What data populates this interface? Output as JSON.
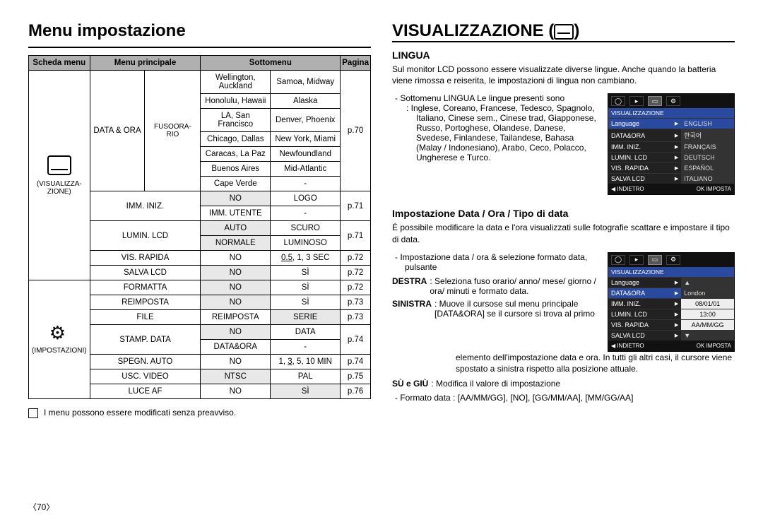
{
  "left": {
    "heading": "Menu impostazione",
    "headers": {
      "c1": "Scheda menu",
      "c2": "Menu principale",
      "c3": "Sottomenu",
      "c4": "",
      "c5": "Pagina"
    },
    "schede": [
      {
        "icon": "display",
        "label_lines": [
          "(VISUALIZZA-",
          "ZIONE)"
        ],
        "groups": [
          {
            "principale": "DATA & ORA",
            "sub_principale": "FUSOORA-\nRIO",
            "pagina": "p.70",
            "rows": [
              {
                "a": "Wellington, Auckland",
                "b": "Samoa, Midway"
              },
              {
                "a": "Honolulu, Hawaii",
                "b": "Alaska"
              },
              {
                "a": "LA, San Francisco",
                "b": "Denver, Phoenix"
              },
              {
                "a": "Chicago, Dallas",
                "b": "New York, Miami"
              },
              {
                "a": "Caracas, La Paz",
                "b": "Newfoundland"
              },
              {
                "a": "Buenos Aires",
                "b": "Mid-Atlantic"
              },
              {
                "a": "Cape Verde",
                "b": "-"
              }
            ]
          },
          {
            "principale": "IMM. INIZ.",
            "pagina": "p.71",
            "rows": [
              {
                "a": "NO",
                "b": "LOGO",
                "a_hl": true
              },
              {
                "a": "IMM. UTENTE",
                "b": "-"
              }
            ]
          },
          {
            "principale": "LUMIN. LCD",
            "pagina": "p.71",
            "rows": [
              {
                "a": "AUTO",
                "b": "SCURO",
                "a_hl": true
              },
              {
                "a": "NORMALE",
                "b": "LUMINOSO",
                "a_hl": true
              }
            ]
          },
          {
            "principale": "VIS. RAPIDA",
            "pagina": "p.72",
            "rows": [
              {
                "a": "NO",
                "b": "0.5, 1, 3 SEC",
                "b_underline": "0.5"
              }
            ]
          },
          {
            "principale": "SALVA LCD",
            "pagina": "p.72",
            "rows": [
              {
                "a": "NO",
                "b": "SÌ",
                "a_hl": true
              }
            ]
          }
        ]
      },
      {
        "icon": "gear",
        "label_lines": [
          "(IMPOSTAZIONI)"
        ],
        "groups": [
          {
            "principale": "FORMATTA",
            "pagina": "p.72",
            "rows": [
              {
                "a": "NO",
                "b": "SÌ",
                "a_hl": true
              }
            ]
          },
          {
            "principale": "REIMPOSTA",
            "pagina": "p.73",
            "rows": [
              {
                "a": "NO",
                "b": "SÌ",
                "a_hl": true
              }
            ]
          },
          {
            "principale": "FILE",
            "pagina": "p.73",
            "rows": [
              {
                "a": "REIMPOSTA",
                "b": "SERIE",
                "b_hl": true
              }
            ]
          },
          {
            "principale": "STAMP. DATA",
            "pagina": "p.74",
            "rows": [
              {
                "a": "NO",
                "b": "DATA",
                "a_hl": true
              },
              {
                "a": "DATA&ORA",
                "b": "-"
              }
            ]
          },
          {
            "principale": "SPEGN. AUTO",
            "pagina": "p.74",
            "rows": [
              {
                "a": "NO",
                "b": "1, 3, 5, 10 MIN",
                "b_underline": "3"
              }
            ]
          },
          {
            "principale": "USC. VIDEO",
            "pagina": "p.75",
            "rows": [
              {
                "a": "NTSC",
                "b": "PAL",
                "a_hl": true
              }
            ]
          },
          {
            "principale": "LUCE AF",
            "pagina": "p.76",
            "rows": [
              {
                "a": "NO",
                "b": "SÌ",
                "b_hl": true
              }
            ]
          }
        ]
      }
    ],
    "note": "I menu possono essere modificati senza preavviso.",
    "page_num": "〈70〉"
  },
  "right": {
    "heading": "VISUALIZZAZIONE (",
    "heading_close": ")",
    "s1": {
      "title": "LINGUA",
      "intro": "Sul monitor LCD possono essere visualizzate diverse lingue.  Anche quando la batteria viene rimossa e reiserita, le impostazioni di lingua non cambiano.",
      "li1": "Sottomenu LINGUA Le lingue presenti sono",
      "li2": "Inglese, Coreano, Francese, Tedesco, Spagnolo, Italiano, Cinese sem., Cinese trad, Giapponese, Russo, Portoghese, Olandese, Danese, Svedese, Finlandese, Tailandese, Bahasa (Malay / Indonesiano), Arabo, Ceco, Polacco, Ungherese e Turco.",
      "lcd": {
        "title": "VISUALIZZAZIONE",
        "rows": [
          {
            "l": "Language",
            "r": "ENGLISH",
            "lsel": true,
            "rsel": true
          },
          {
            "l": "DATA&ORA",
            "r": "한국어"
          },
          {
            "l": "IMM. INIZ.",
            "r": "FRANÇAIS"
          },
          {
            "l": "LUMIN. LCD",
            "r": "DEUTSCH"
          },
          {
            "l": "VIS. RAPIDA",
            "r": "ESPAÑOL"
          },
          {
            "l": "SALVA LCD",
            "r": "ITALIANO"
          }
        ],
        "foot_l": "◀ INDIETRO",
        "foot_r": "OK IMPOSTA"
      }
    },
    "s2": {
      "title": "Impostazione Data / Ora / Tipo di data",
      "intro": "É possibile modificare la data e l'ora visualizzati sulle fotografie scattare e impostare il tipo di data.",
      "li1": "Impostazione data / ora & selezione formato data, pulsante",
      "k_destra": "DESTRA",
      "v_destra": ": Seleziona fuso orario/ anno/ mese/ giorno / ora/ minuti e formato data.",
      "k_sinistra": "SINISTRA",
      "v_sinistra": ": Muove il cursose sul menu principale [DATA&ORA] se il cursore si trova al primo",
      "v_sinistra_cont": "elemento dell'impostazione data e ora.  In tutti gli altri casi, il cursore viene spostato a sinistra rispetto alla posizione attuale.",
      "k_sugiu": "SÙ",
      "k_sugiu2": "GIÙ",
      "v_sugiu": ": Modifica il valore di impostazione",
      "li_format": "Formato data : [AA/MM/GG], [NO], [GG/MM/AA], [MM/GG/AA]",
      "lcd": {
        "title": "VISUALIZZAZIONE",
        "rows": [
          {
            "l": "Language",
            "r": "▲"
          },
          {
            "l": "DATA&ORA",
            "r": "London",
            "lsel": true
          },
          {
            "l": "IMM. INIZ.",
            "r": "08/01/01",
            "rbox": true
          },
          {
            "l": "LUMIN. LCD",
            "r": "13:00",
            "rbox": true
          },
          {
            "l": "VIS. RAPIDA",
            "r": "AA/MM/GG",
            "rbox": true
          },
          {
            "l": "SALVA LCD",
            "r": "▼"
          }
        ],
        "foot_l": "◀ INDIETRO",
        "foot_r": "OK IMPOSTA"
      }
    }
  }
}
